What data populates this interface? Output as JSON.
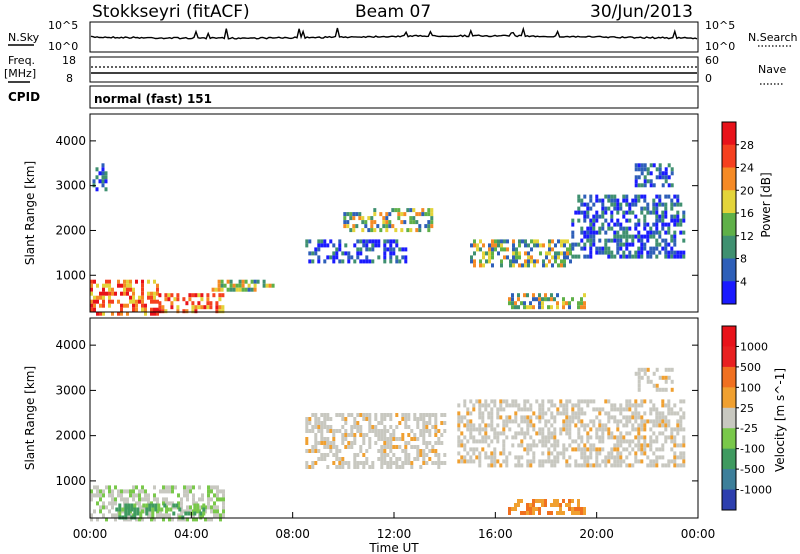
{
  "header": {
    "station": "Stokkseyri (fitACF)",
    "beam": "Beam 07",
    "date": "30/Jun/2013"
  },
  "sky_panel": {
    "left_label": "N.Sky",
    "right_label": "N.Search",
    "left_ticks": [
      "10^5",
      "10^0"
    ],
    "right_ticks": [
      "10^5",
      "10^0"
    ]
  },
  "freq_panel": {
    "left_label": "Freq.",
    "left_unit": "[MHz]",
    "left_ticks": [
      "18",
      "8"
    ],
    "right_label": "Nave",
    "right_ticks": [
      "60",
      "0"
    ]
  },
  "cpid": {
    "label": "CPID",
    "mode": "normal (fast) 151"
  },
  "chart_data": [
    {
      "type": "heatmap",
      "title": "",
      "ylabel": "Slant Range [km]",
      "ytick_labels": [
        "1000",
        "2000",
        "3000",
        "4000"
      ],
      "yticks": [
        1000,
        2000,
        3000,
        4000
      ],
      "ylim": [
        180,
        4600
      ],
      "xlabel": "",
      "xlim": [
        0,
        24
      ],
      "colorbar": {
        "label": "Power [dB]",
        "tick_labels": [
          "4",
          "8",
          "12",
          "16",
          "20",
          "24",
          "28"
        ],
        "colors": [
          "#1a1aff",
          "#2e5fb8",
          "#3f9070",
          "#5fb048",
          "#e3d43a",
          "#f58a25",
          "#f5401f",
          "#e8121a"
        ]
      },
      "echo_regions": [
        {
          "t": [
            0.0,
            2.7
          ],
          "range": [
            180,
            900
          ],
          "level": "high"
        },
        {
          "t": [
            2.7,
            5.3
          ],
          "range": [
            200,
            600
          ],
          "level": "high"
        },
        {
          "t": [
            4.8,
            7.2
          ],
          "range": [
            700,
            900
          ],
          "level": "medium"
        },
        {
          "t": [
            0.1,
            0.6
          ],
          "range": [
            2900,
            3500
          ],
          "level": "low"
        },
        {
          "t": [
            8.5,
            12.5
          ],
          "range": [
            1300,
            1800
          ],
          "level": "low"
        },
        {
          "t": [
            10.0,
            13.5
          ],
          "range": [
            2000,
            2500
          ],
          "level": "medium"
        },
        {
          "t": [
            15.0,
            19.0
          ],
          "range": [
            1200,
            1800
          ],
          "level": "medium"
        },
        {
          "t": [
            16.5,
            19.5
          ],
          "range": [
            300,
            600
          ],
          "level": "medium"
        },
        {
          "t": [
            19.0,
            23.5
          ],
          "range": [
            1400,
            2800
          ],
          "level": "low"
        },
        {
          "t": [
            21.5,
            23.0
          ],
          "range": [
            3000,
            3500
          ],
          "level": "low"
        }
      ]
    },
    {
      "type": "heatmap",
      "title": "",
      "ylabel": "Slant Range [km]",
      "ytick_labels": [
        "1000",
        "2000",
        "3000",
        "4000"
      ],
      "yticks": [
        1000,
        2000,
        3000,
        4000
      ],
      "ylim": [
        180,
        4600
      ],
      "xlabel": "Time UT",
      "xlim": [
        0,
        24
      ],
      "xtick_labels": [
        "00:00",
        "04:00",
        "08:00",
        "12:00",
        "16:00",
        "20:00",
        "00:00"
      ],
      "xticks": [
        0,
        4,
        8,
        12,
        16,
        20,
        24
      ],
      "colorbar": {
        "label": "Velocity [m s^-1]",
        "tick_labels": [
          "1000",
          "500",
          "100",
          "25",
          "-25",
          "-100",
          "-500",
          "-1000"
        ],
        "colors": [
          "#2d3fae",
          "#3d7f9a",
          "#3f9a60",
          "#79c84a",
          "#c8c8c0",
          "#f0a030",
          "#f07020",
          "#e82020",
          "#e8121a"
        ]
      },
      "echo_regions": [
        {
          "t": [
            0.0,
            5.3
          ],
          "range": [
            180,
            900
          ],
          "level": "ground"
        },
        {
          "t": [
            1.0,
            4.5
          ],
          "range": [
            180,
            500
          ],
          "level": "green"
        },
        {
          "t": [
            8.5,
            14.0
          ],
          "range": [
            1300,
            2500
          ],
          "level": "grey"
        },
        {
          "t": [
            14.5,
            23.5
          ],
          "range": [
            1300,
            2800
          ],
          "level": "grey"
        },
        {
          "t": [
            16.5,
            19.5
          ],
          "range": [
            300,
            600
          ],
          "level": "orange"
        },
        {
          "t": [
            21.5,
            23.0
          ],
          "range": [
            3000,
            3500
          ],
          "level": "grey"
        }
      ]
    }
  ]
}
